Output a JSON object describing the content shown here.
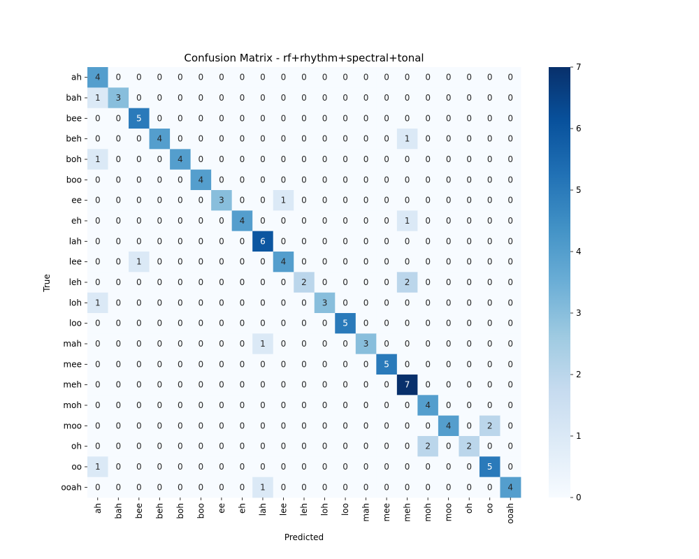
{
  "chart_data": {
    "type": "heatmap",
    "title": "Confusion Matrix - rf+rhythm+spectral+tonal",
    "xlabel": "Predicted",
    "ylabel": "True",
    "x_categories": [
      "ah",
      "bah",
      "bee",
      "beh",
      "boh",
      "boo",
      "ee",
      "eh",
      "lah",
      "lee",
      "leh",
      "loh",
      "loo",
      "mah",
      "mee",
      "meh",
      "moh",
      "moo",
      "oh",
      "oo",
      "ooah"
    ],
    "y_categories": [
      "ah",
      "bah",
      "bee",
      "beh",
      "boh",
      "boo",
      "ee",
      "eh",
      "lah",
      "lee",
      "leh",
      "loh",
      "loo",
      "mah",
      "mee",
      "meh",
      "moh",
      "moo",
      "oh",
      "oo",
      "ooah"
    ],
    "values": [
      [
        4,
        0,
        0,
        0,
        0,
        0,
        0,
        0,
        0,
        0,
        0,
        0,
        0,
        0,
        0,
        0,
        0,
        0,
        0,
        0,
        0
      ],
      [
        1,
        3,
        0,
        0,
        0,
        0,
        0,
        0,
        0,
        0,
        0,
        0,
        0,
        0,
        0,
        0,
        0,
        0,
        0,
        0,
        0
      ],
      [
        0,
        0,
        5,
        0,
        0,
        0,
        0,
        0,
        0,
        0,
        0,
        0,
        0,
        0,
        0,
        0,
        0,
        0,
        0,
        0,
        0
      ],
      [
        0,
        0,
        0,
        4,
        0,
        0,
        0,
        0,
        0,
        0,
        0,
        0,
        0,
        0,
        0,
        1,
        0,
        0,
        0,
        0,
        0
      ],
      [
        1,
        0,
        0,
        0,
        4,
        0,
        0,
        0,
        0,
        0,
        0,
        0,
        0,
        0,
        0,
        0,
        0,
        0,
        0,
        0,
        0
      ],
      [
        0,
        0,
        0,
        0,
        0,
        4,
        0,
        0,
        0,
        0,
        0,
        0,
        0,
        0,
        0,
        0,
        0,
        0,
        0,
        0,
        0
      ],
      [
        0,
        0,
        0,
        0,
        0,
        0,
        3,
        0,
        0,
        1,
        0,
        0,
        0,
        0,
        0,
        0,
        0,
        0,
        0,
        0,
        0
      ],
      [
        0,
        0,
        0,
        0,
        0,
        0,
        0,
        4,
        0,
        0,
        0,
        0,
        0,
        0,
        0,
        1,
        0,
        0,
        0,
        0,
        0
      ],
      [
        0,
        0,
        0,
        0,
        0,
        0,
        0,
        0,
        6,
        0,
        0,
        0,
        0,
        0,
        0,
        0,
        0,
        0,
        0,
        0,
        0
      ],
      [
        0,
        0,
        1,
        0,
        0,
        0,
        0,
        0,
        0,
        4,
        0,
        0,
        0,
        0,
        0,
        0,
        0,
        0,
        0,
        0,
        0
      ],
      [
        0,
        0,
        0,
        0,
        0,
        0,
        0,
        0,
        0,
        0,
        2,
        0,
        0,
        0,
        0,
        2,
        0,
        0,
        0,
        0,
        0
      ],
      [
        1,
        0,
        0,
        0,
        0,
        0,
        0,
        0,
        0,
        0,
        0,
        3,
        0,
        0,
        0,
        0,
        0,
        0,
        0,
        0,
        0
      ],
      [
        0,
        0,
        0,
        0,
        0,
        0,
        0,
        0,
        0,
        0,
        0,
        0,
        5,
        0,
        0,
        0,
        0,
        0,
        0,
        0,
        0
      ],
      [
        0,
        0,
        0,
        0,
        0,
        0,
        0,
        0,
        1,
        0,
        0,
        0,
        0,
        3,
        0,
        0,
        0,
        0,
        0,
        0,
        0
      ],
      [
        0,
        0,
        0,
        0,
        0,
        0,
        0,
        0,
        0,
        0,
        0,
        0,
        0,
        0,
        5,
        0,
        0,
        0,
        0,
        0,
        0
      ],
      [
        0,
        0,
        0,
        0,
        0,
        0,
        0,
        0,
        0,
        0,
        0,
        0,
        0,
        0,
        0,
        7,
        0,
        0,
        0,
        0,
        0
      ],
      [
        0,
        0,
        0,
        0,
        0,
        0,
        0,
        0,
        0,
        0,
        0,
        0,
        0,
        0,
        0,
        0,
        4,
        0,
        0,
        0,
        0
      ],
      [
        0,
        0,
        0,
        0,
        0,
        0,
        0,
        0,
        0,
        0,
        0,
        0,
        0,
        0,
        0,
        0,
        0,
        4,
        0,
        2,
        0
      ],
      [
        0,
        0,
        0,
        0,
        0,
        0,
        0,
        0,
        0,
        0,
        0,
        0,
        0,
        0,
        0,
        0,
        2,
        0,
        2,
        0,
        0
      ],
      [
        1,
        0,
        0,
        0,
        0,
        0,
        0,
        0,
        0,
        0,
        0,
        0,
        0,
        0,
        0,
        0,
        0,
        0,
        0,
        5,
        0
      ],
      [
        0,
        0,
        0,
        0,
        0,
        0,
        0,
        0,
        1,
        0,
        0,
        0,
        0,
        0,
        0,
        0,
        0,
        0,
        0,
        0,
        4
      ]
    ],
    "vmin": 0,
    "vmax": 7,
    "colorbar_ticks": [
      0,
      1,
      2,
      3,
      4,
      5,
      6,
      7
    ],
    "colormap": "Blues",
    "grid": false
  }
}
